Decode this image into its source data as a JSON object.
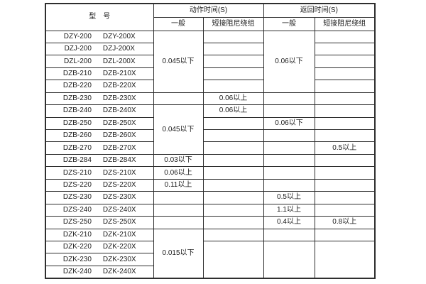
{
  "table": {
    "header": {
      "model": "型　号",
      "action_time": "动作时间(S)",
      "return_time": "返回时间(S)",
      "action_general": "一般",
      "action_damping": "短接阻尼绕组",
      "return_general": "一般",
      "return_damping": "短接阻尼绕组"
    },
    "rows": [
      {
        "left": "DZY-200",
        "right": "DZY-200X"
      },
      {
        "left": "DZJ-200",
        "right": "DZJ-200X"
      },
      {
        "left": "DZL-200",
        "right": "DZL-200X"
      },
      {
        "left": "DZB-210",
        "right": "DZB-210X"
      },
      {
        "left": "DZB-220",
        "right": "DZB-220X"
      },
      {
        "left": "DZB-230",
        "right": "DZB-230X"
      },
      {
        "left": "DZB-240",
        "right": "DZB-240X"
      },
      {
        "left": "DZB-250",
        "right": "DZB-250X"
      },
      {
        "left": "DZB-260",
        "right": "DZB-260X"
      },
      {
        "left": "DZB-270",
        "right": "DZB-270X"
      },
      {
        "left": "DZB-284",
        "right": "DZB-284X"
      },
      {
        "left": "DZS-210",
        "right": "DZS-210X"
      },
      {
        "left": "DZS-220",
        "right": "DZS-220X"
      },
      {
        "left": "DZS-230",
        "right": "DZS-230X"
      },
      {
        "left": "DZS-240",
        "right": "DZS-240X"
      },
      {
        "left": "DZS-250",
        "right": "DZS-250X"
      },
      {
        "left": "DZK-210",
        "right": "DZK-210X"
      },
      {
        "left": "DZK-220",
        "right": "DZK-220X"
      },
      {
        "left": "DZK-230",
        "right": "DZK-230X"
      },
      {
        "left": "DZK-240",
        "right": "DZK-240X"
      }
    ],
    "values": {
      "act_gen_rows1_5": "0.045以下",
      "act_gen_rows7_10": "0.045以下",
      "act_gen_row11": "0.03以下",
      "act_gen_row12": "0.06以上",
      "act_gen_row13": "0.11以上",
      "act_gen_rows17_20": "0.015以下",
      "act_damp_row6": "0.06以上",
      "act_damp_row7": "0.06以上",
      "ret_gen_rows1_5": "0.06以下",
      "ret_gen_row8": "0.06以下",
      "ret_gen_row14": "0.5以上",
      "ret_gen_row15": "1.1以上",
      "ret_gen_row16": "0.4以上",
      "ret_damp_row10": "0.5以上",
      "ret_damp_row16": "0.8以上"
    },
    "colors": {
      "border": "#2e2e2e",
      "background": "#ffffff",
      "text": "#1c1c1c"
    }
  }
}
